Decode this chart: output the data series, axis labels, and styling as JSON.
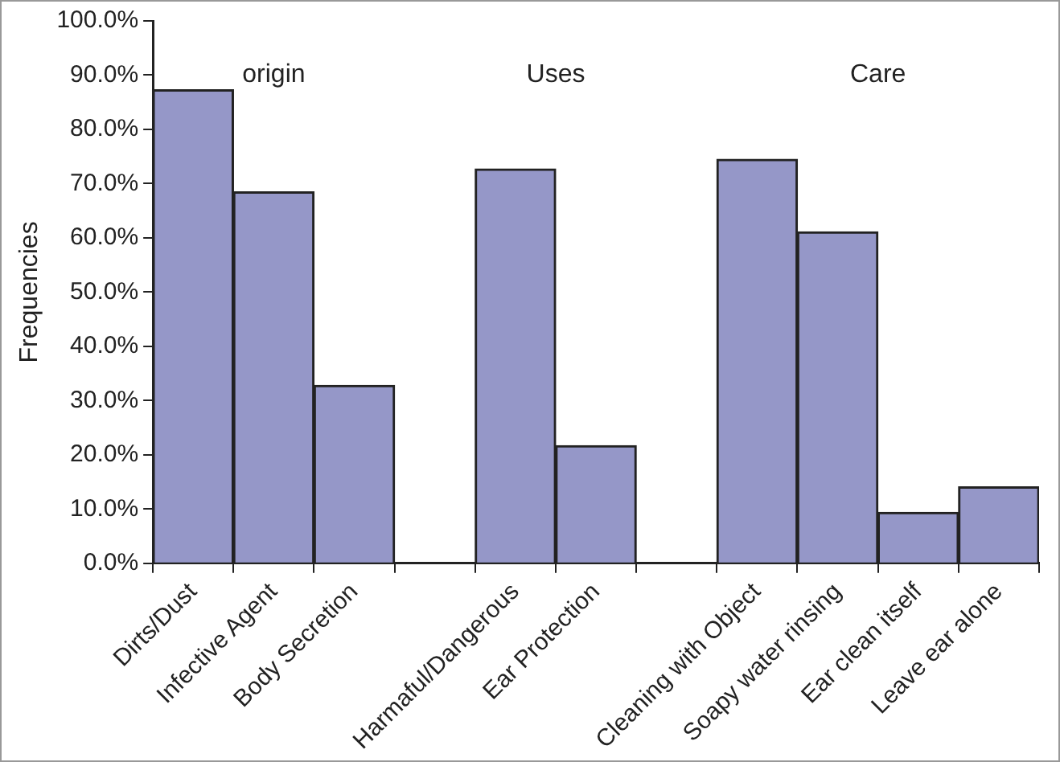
{
  "chart_data": {
    "type": "bar",
    "ylabel": "Frequencies",
    "categories": [
      "Dirts/Dust",
      "Infective Agent",
      "Body Secretion",
      null,
      "Harmaful/Dangerous",
      "Ear Protection",
      null,
      "Cleaning with Object",
      "Soapy water rinsing",
      "Ear clean itself",
      "Leave ear alone"
    ],
    "values": [
      87.3,
      68.5,
      32.8,
      null,
      72.7,
      21.7,
      null,
      74.5,
      61.1,
      9.4,
      14.1
    ],
    "color": "#9597c8",
    "ylim": [
      0,
      100
    ],
    "yticks": [
      {
        "value": 0,
        "label": "0.0%"
      },
      {
        "value": 10,
        "label": "10.0%"
      },
      {
        "value": 20,
        "label": "20.0%"
      },
      {
        "value": 30,
        "label": "30.0%"
      },
      {
        "value": 40,
        "label": "40.0%"
      },
      {
        "value": 50,
        "label": "50.0%"
      },
      {
        "value": 60,
        "label": "60.0%"
      },
      {
        "value": 70,
        "label": "70.0%"
      },
      {
        "value": 80,
        "label": "80.0%"
      },
      {
        "value": 90,
        "label": "90.0%"
      },
      {
        "value": 100,
        "label": "100.0%"
      }
    ],
    "annotations": [
      "origin",
      "Uses",
      "Care"
    ],
    "grid": false,
    "legend": false
  }
}
